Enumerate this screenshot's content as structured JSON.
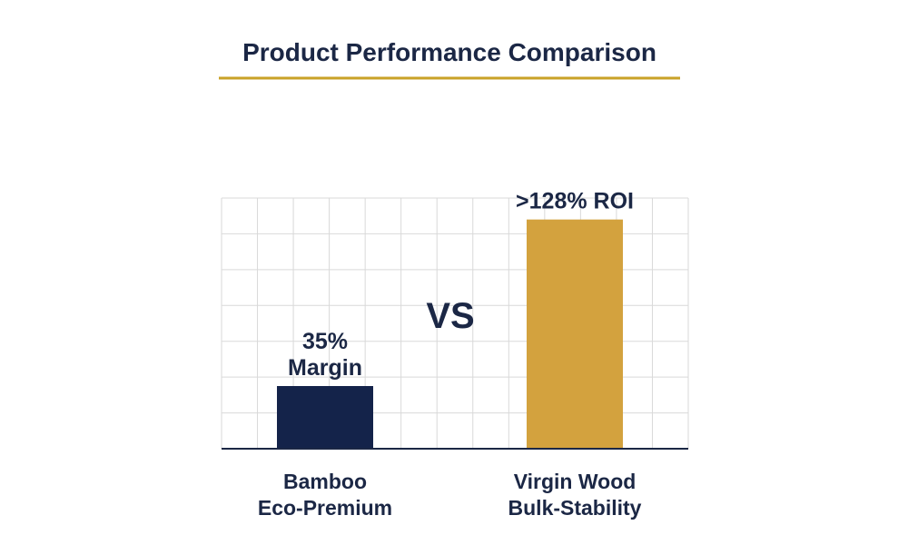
{
  "colors": {
    "title": "#1b2745",
    "accent_line": "#c9a227",
    "grid": "#d9d9d9",
    "axis": "#1b2745",
    "text": "#1b2745"
  },
  "chart_data": {
    "type": "bar",
    "title": "Product Performance Comparison",
    "xlabel": "",
    "ylabel": "",
    "grid": true,
    "ylim": [
      0,
      140
    ],
    "categories": [
      [
        "Bamboo",
        "Eco-Premium"
      ],
      [
        "Virgin Wood",
        "Bulk-Stability"
      ]
    ],
    "values": [
      35,
      128
    ],
    "data_labels": [
      [
        "35%",
        "Margin"
      ],
      [
        ">128% ROI"
      ]
    ],
    "colors": [
      "#14234a",
      "#d3a23e"
    ],
    "annotation": "VS"
  }
}
